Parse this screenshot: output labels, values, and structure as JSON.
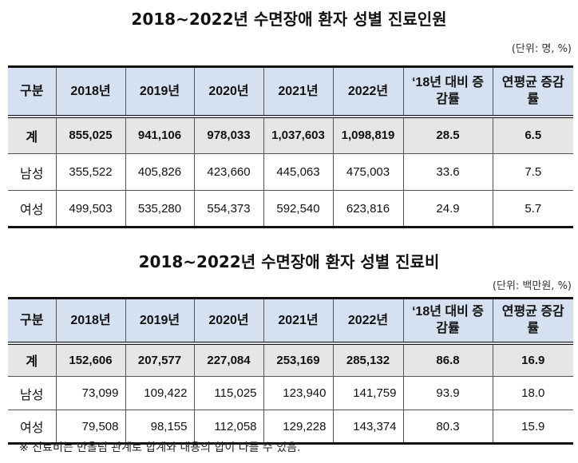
{
  "table1": {
    "title": "2018~2022년 수면장애 환자 성별 진료인원",
    "unit": "(단위: 명, %)",
    "headers": [
      "구분",
      "2018년",
      "2019년",
      "2020년",
      "2021년",
      "2022년",
      "‘18년 대비 증감률",
      "연평균 증감률"
    ],
    "rows": [
      [
        "계",
        "855,025",
        "941,106",
        "978,033",
        "1,037,603",
        "1,098,819",
        "28.5",
        "6.5"
      ],
      [
        "남성",
        "355,522",
        "405,826",
        "423,660",
        "445,063",
        "475,003",
        "33.6",
        "7.5"
      ],
      [
        "여성",
        "499,503",
        "535,280",
        "554,373",
        "592,540",
        "623,816",
        "24.9",
        "5.7"
      ]
    ]
  },
  "table2": {
    "title": "2018~2022년 수면장애 환자 성별 진료비",
    "unit": "(단위: 백만원, %)",
    "headers": [
      "구분",
      "2018년",
      "2019년",
      "2020년",
      "2021년",
      "2022년",
      "‘18년 대비 증감률",
      "연평균 증감률"
    ],
    "rows": [
      [
        "계",
        "152,606",
        "207,577",
        "227,084",
        "253,169",
        "285,132",
        "86.8",
        "16.9"
      ],
      [
        "남성",
        "73,099",
        "109,422",
        "115,025",
        "123,940",
        "141,759",
        "93.9",
        "18.0"
      ],
      [
        "여성",
        "79,508",
        "98,155",
        "112,058",
        "129,228",
        "143,374",
        "80.3",
        "15.9"
      ]
    ]
  },
  "note": "※ 진료비는 반올림 관계로 합계와 내용의 합이 다를 수 있음.",
  "colors": {
    "header_bg": "#d5e1f0",
    "total_bg": "#e6e6e6"
  }
}
